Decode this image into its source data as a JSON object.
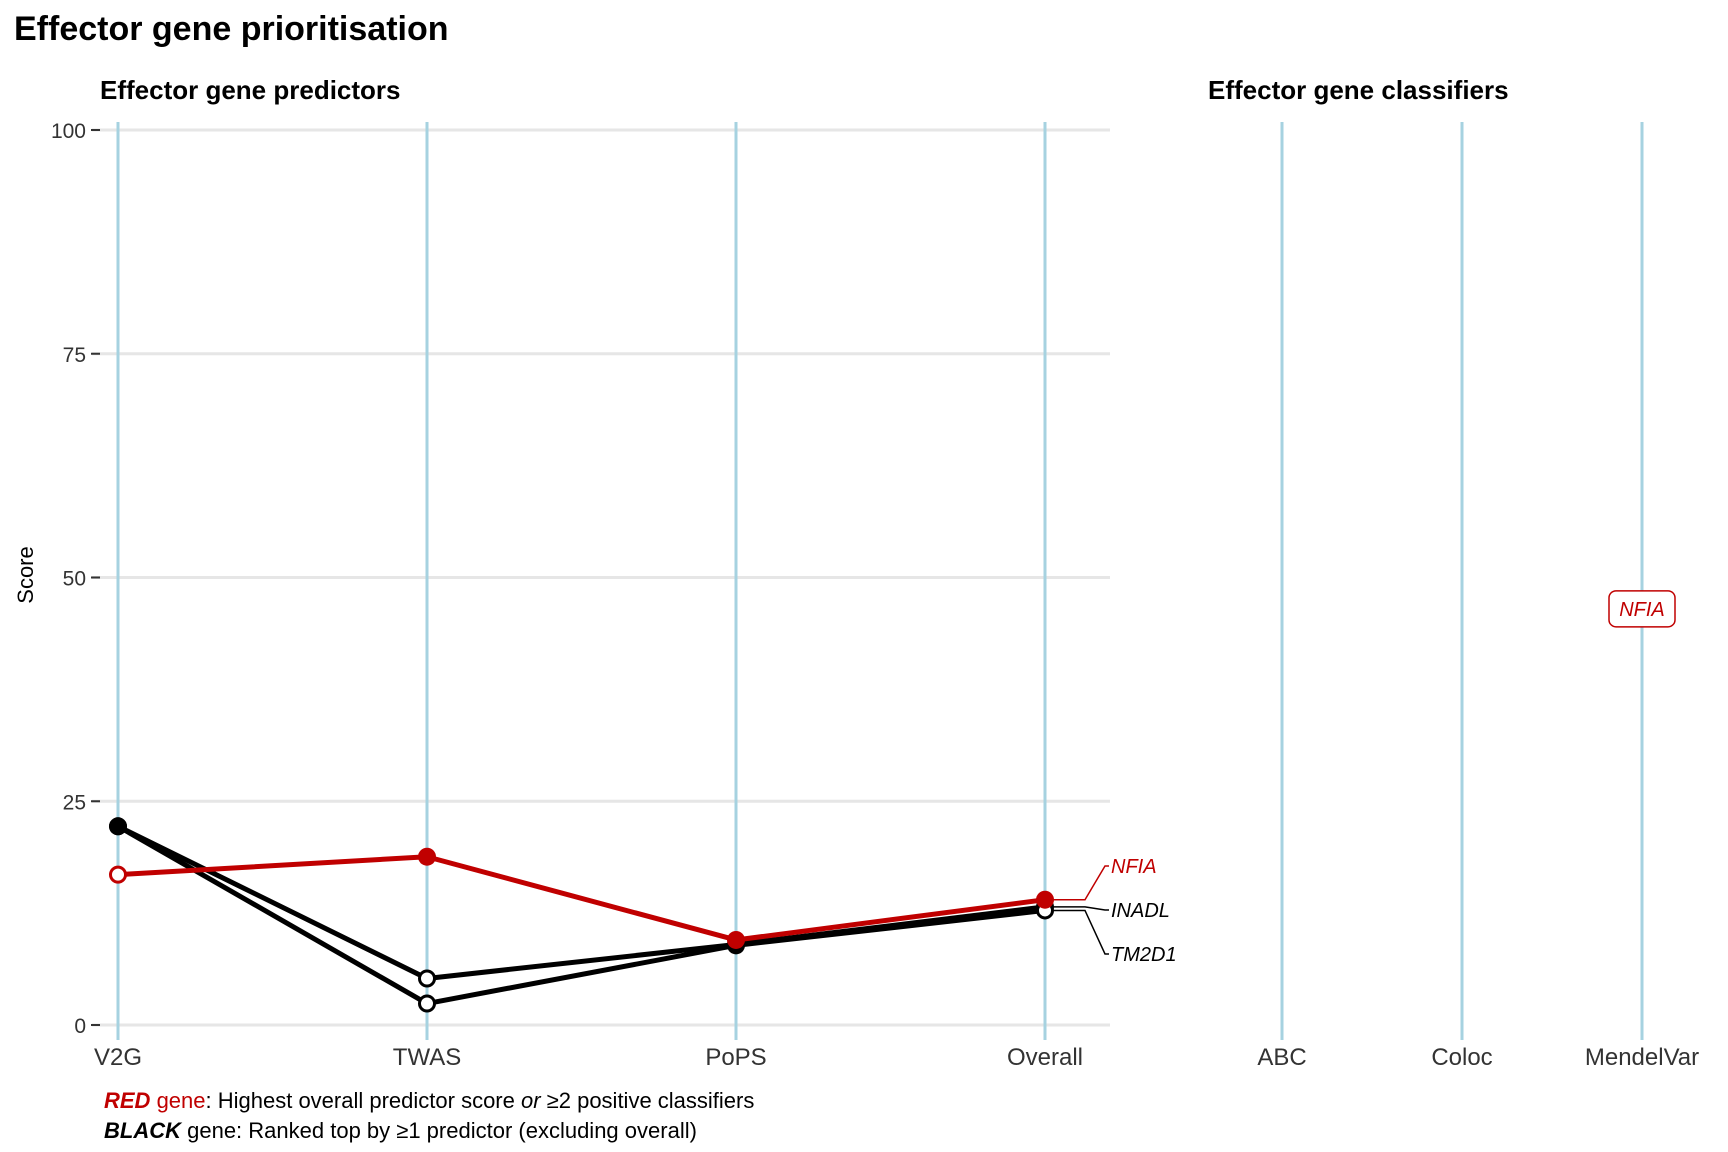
{
  "title": "Effector gene prioritisation",
  "chart_data": {
    "type": "line",
    "ylabel": "Score",
    "ylim": [
      0,
      100
    ],
    "yticks": [
      0,
      25,
      50,
      75,
      100
    ],
    "panels": {
      "predictors": {
        "title": "Effector gene predictors",
        "categories": [
          "V2G",
          "TWAS",
          "PoPS",
          "Overall"
        ]
      },
      "classifiers": {
        "title": "Effector gene classifiers",
        "categories": [
          "ABC",
          "Coloc",
          "MendelVar"
        ]
      }
    },
    "series": [
      {
        "name": "NFIA",
        "color": "#c00000",
        "values": [
          16.8,
          18.8,
          9.5,
          14.0
        ],
        "filled": [
          false,
          true,
          true,
          true
        ]
      },
      {
        "name": "INADL",
        "color": "#000000",
        "values": [
          22.2,
          5.2,
          9.0,
          13.2
        ],
        "filled": [
          true,
          false,
          true,
          true
        ]
      },
      {
        "name": "TM2D1",
        "color": "#000000",
        "values": [
          22.2,
          2.4,
          8.9,
          12.8
        ],
        "filled": [
          true,
          false,
          true,
          false
        ]
      }
    ],
    "classifier_labels": [
      {
        "gene": "NFIA",
        "category": "MendelVar",
        "value": 46.5,
        "color": "#c00000"
      }
    ],
    "grid": true
  },
  "caption": {
    "line1": {
      "red": "RED",
      "gene": " gene",
      "rest1": ": Highest overall predictor score ",
      "or": "or",
      "rest2": " ≥2 positive classifiers"
    },
    "line2": {
      "black": "BLACK",
      "rest": " gene: Ranked top by ≥1 predictor (excluding overall)"
    }
  },
  "colors": {
    "vline": "#a6d2e0",
    "hgrid": "#e6e6e6",
    "red": "#c00000",
    "black": "#000000"
  }
}
